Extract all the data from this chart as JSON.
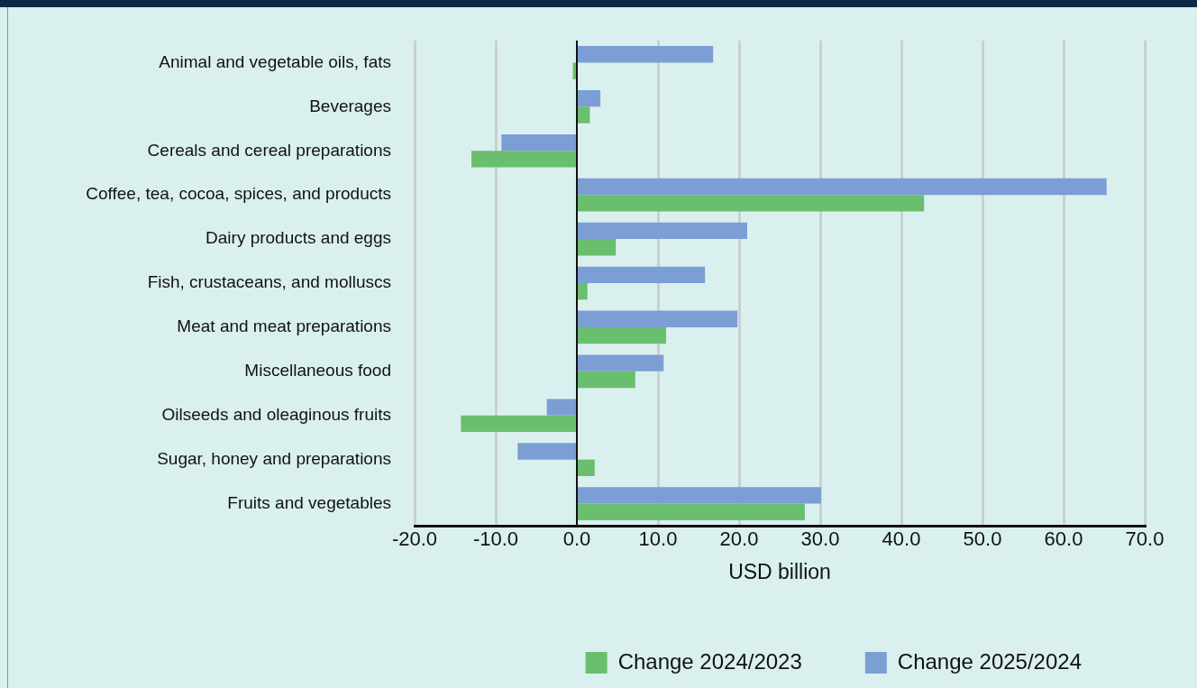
{
  "chart_data": {
    "type": "bar",
    "orientation": "horizontal",
    "xlabel": "USD billion",
    "categories": [
      "Animal and vegetable oils, fats",
      "Beverages",
      "Cereals and cereal preparations",
      "Coffee, tea, cocoa, spices, and products",
      "Dairy products and eggs",
      "Fish, crustaceans, and molluscs",
      "Meat and meat preparations",
      "Miscellaneous food",
      "Oilseeds and oleaginous fruits",
      "Sugar, honey and preparations",
      "Fruits and vegetables"
    ],
    "series": [
      {
        "name": "Change 2024/2023",
        "color": "#6abf6e",
        "values": [
          -0.5,
          1.6,
          -13.0,
          42.8,
          4.8,
          1.3,
          11.0,
          7.2,
          -14.3,
          2.2,
          28.1
        ]
      },
      {
        "name": "Change 2025/2024",
        "color": "#7b9fd4",
        "values": [
          16.8,
          2.9,
          -9.3,
          65.3,
          21.0,
          15.8,
          19.8,
          10.7,
          -3.7,
          -7.3,
          30.1
        ]
      }
    ],
    "xlim": [
      -20,
      70
    ],
    "xticks": [
      {
        "value": -20,
        "label": "-20.0"
      },
      {
        "value": -10,
        "label": "-10.0"
      },
      {
        "value": 0,
        "label": "0.0"
      },
      {
        "value": 10,
        "label": "10.0"
      },
      {
        "value": 20,
        "label": "20.0"
      },
      {
        "value": 30,
        "label": "30.0"
      },
      {
        "value": 40,
        "label": "40.0"
      },
      {
        "value": 50,
        "label": "50.0"
      },
      {
        "value": 60,
        "label": "60.0"
      },
      {
        "value": 70,
        "label": "70.0"
      }
    ],
    "grid": "x",
    "legend": "bottom"
  }
}
